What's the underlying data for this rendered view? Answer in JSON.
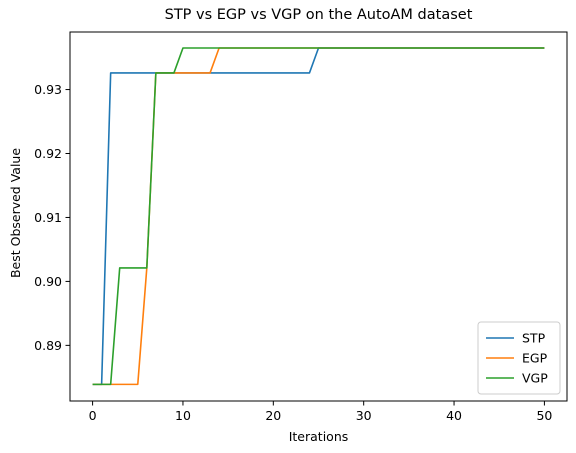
{
  "chart_data": {
    "type": "line",
    "title": "STP vs EGP vs VGP on the AutoAM dataset",
    "xlabel": "Iterations",
    "ylabel": "Best Observed Value",
    "xlim": [
      -2.5,
      52.5
    ],
    "ylim": [
      0.8813,
      0.939
    ],
    "x_ticks": [
      0,
      10,
      20,
      30,
      40,
      50
    ],
    "y_ticks": [
      0.89,
      0.9,
      0.91,
      0.92,
      0.93
    ],
    "y_tick_labels": [
      "0.89",
      "0.90",
      "0.91",
      "0.92",
      "0.93"
    ],
    "grid": false,
    "legend_position": "lower-right",
    "series": [
      {
        "name": "STP",
        "color": "#1f77b4",
        "points": [
          [
            0,
            0.8839
          ],
          [
            1,
            0.8839
          ],
          [
            2,
            0.9326
          ],
          [
            24,
            0.9326
          ],
          [
            25,
            0.9365
          ],
          [
            50,
            0.9365
          ]
        ]
      },
      {
        "name": "EGP",
        "color": "#ff7f0e",
        "points": [
          [
            0,
            0.8839
          ],
          [
            5,
            0.8839
          ],
          [
            6,
            0.9021
          ],
          [
            7,
            0.9326
          ],
          [
            13,
            0.9326
          ],
          [
            14,
            0.9365
          ],
          [
            50,
            0.9365
          ]
        ]
      },
      {
        "name": "VGP",
        "color": "#2ca02c",
        "points": [
          [
            0,
            0.8839
          ],
          [
            2,
            0.8839
          ],
          [
            3,
            0.9021
          ],
          [
            6,
            0.9021
          ],
          [
            7,
            0.9326
          ],
          [
            9,
            0.9326
          ],
          [
            10,
            0.9365
          ],
          [
            50,
            0.9365
          ]
        ]
      }
    ]
  }
}
